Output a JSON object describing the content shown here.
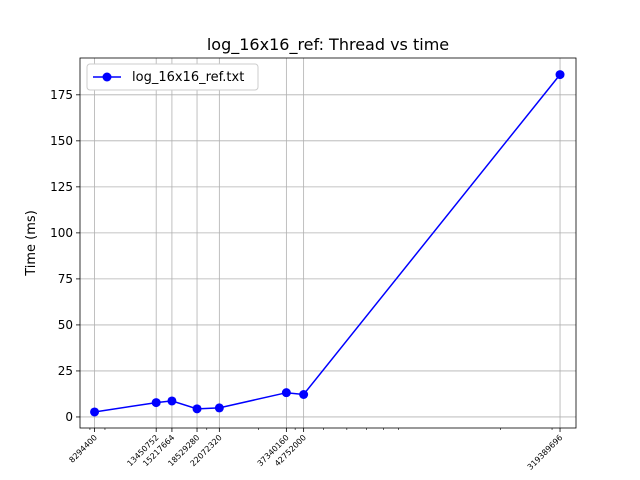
{
  "chart_data": {
    "type": "line",
    "title": "log_16x16_ref: Thread vs time",
    "xlabel": "",
    "ylabel": "Time (ms)",
    "xscale": "log",
    "grid": true,
    "legend": {
      "placement": "top-left",
      "entries": [
        "log_16x16_ref.txt"
      ]
    },
    "ylim": [
      -6,
      195
    ],
    "yticks": [
      0,
      25,
      50,
      75,
      100,
      125,
      150,
      175
    ],
    "xticks": [
      8294400,
      13450752,
      15217664,
      18529280,
      22072320,
      37340160,
      42752000,
      319389696
    ],
    "xtick_labels": [
      "8294400",
      "13450752",
      "15217664",
      "18529280",
      "22072320",
      "37340160",
      "42752000",
      "319389696"
    ],
    "series": [
      {
        "name": "log_16x16_ref.txt",
        "color": "#0000ff",
        "marker": "circle",
        "x": [
          8294400,
          13450752,
          15217664,
          18529280,
          22072320,
          37340160,
          42752000,
          319389696
        ],
        "y": [
          2.7,
          7.8,
          8.7,
          4.4,
          4.9,
          13.2,
          12.2,
          186
        ]
      }
    ]
  }
}
